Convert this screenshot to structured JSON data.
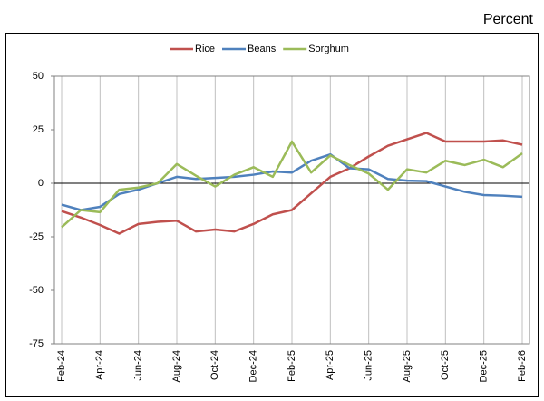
{
  "chart_data": {
    "type": "line",
    "y_label": "Percent",
    "categories": [
      "Feb-24",
      null,
      "Apr-24",
      null,
      "Jun-24",
      null,
      "Aug-24",
      null,
      "Oct-24",
      null,
      "Dec-24",
      null,
      "Feb-25",
      null,
      "Apr-25",
      null,
      "Jun-25",
      null,
      "Aug-25",
      null,
      "Oct-25",
      null,
      "Dec-25",
      null,
      "Feb-26"
    ],
    "series": [
      {
        "name": "Rice",
        "color": "#c0504d",
        "values": [
          -13,
          -16,
          -19.5,
          -23.5,
          -19,
          -18,
          -17.5,
          -22.5,
          -21.6,
          -22.5,
          -19,
          -14.5,
          -12.5,
          -4.7,
          3,
          7,
          12.5,
          17.5,
          20.5,
          23.5,
          19.5,
          19.5,
          19.5,
          20,
          18
        ]
      },
      {
        "name": "Beans",
        "color": "#4f81bd",
        "values": [
          -10,
          -12.5,
          -11,
          -5,
          -3,
          0,
          3,
          2,
          2.5,
          3,
          4,
          5.5,
          5,
          10.5,
          13.5,
          7,
          6.5,
          2,
          1.2,
          1,
          -1.5,
          -4,
          -5.5,
          -5.8,
          -6.3
        ]
      },
      {
        "name": "Sorghum",
        "color": "#9bbb59",
        "values": [
          -20.5,
          -12.5,
          -13.5,
          -3,
          -2,
          0,
          9,
          3.5,
          -1.5,
          4,
          7.5,
          3,
          19.5,
          5,
          13,
          8.5,
          4.5,
          -3,
          6.5,
          5,
          10.5,
          8.5,
          11,
          7.5,
          14
        ]
      }
    ],
    "ylim": [
      -75,
      50
    ],
    "yticks": [
      -75,
      -50,
      -25,
      0,
      25,
      50
    ],
    "grid": true,
    "legend": "top"
  }
}
